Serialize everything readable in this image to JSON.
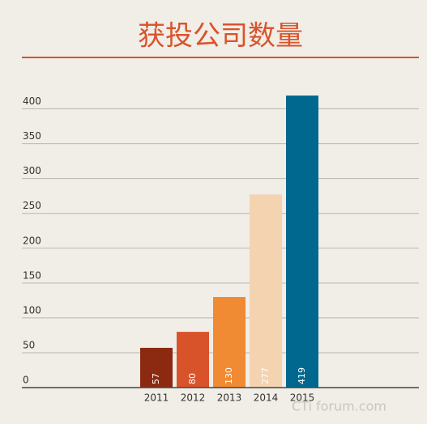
{
  "chart_data": {
    "type": "bar",
    "title": "获投公司数量",
    "categories": [
      "2011",
      "2012",
      "2013",
      "2014",
      "2015"
    ],
    "values": [
      57,
      80,
      130,
      277,
      419
    ],
    "colors": [
      "#8b2a10",
      "#d9532a",
      "#f08a33",
      "#f4d3b0",
      "#00678f"
    ],
    "ylim": [
      0,
      400
    ],
    "yticks": [
      0,
      50,
      100,
      150,
      200,
      250,
      300,
      350,
      400
    ],
    "grid": true,
    "watermark": "CTi forum.com"
  }
}
